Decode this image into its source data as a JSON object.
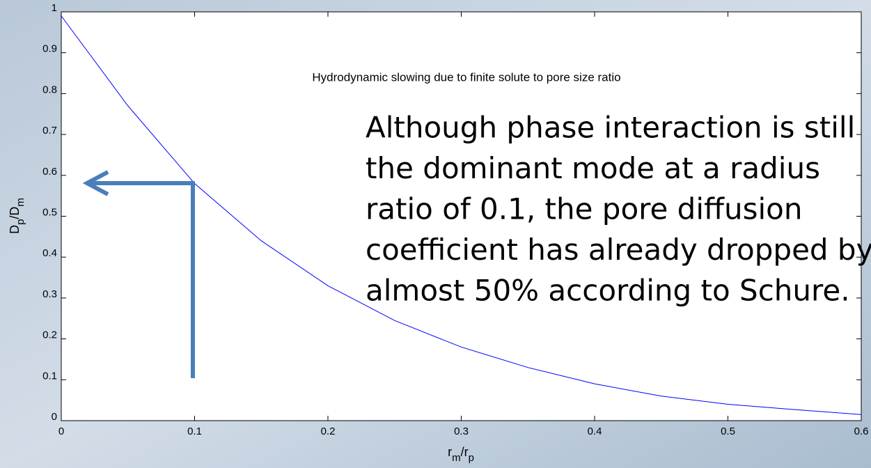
{
  "chart_data": {
    "type": "line",
    "title": "Hydrodynamic slowing due to finite solute to pore size ratio",
    "xlabel": [
      "r",
      "m",
      "/r",
      "p"
    ],
    "ylabel": [
      "D",
      "p",
      "/D",
      "m"
    ],
    "x": [
      0,
      0.05,
      0.1,
      0.15,
      0.2,
      0.25,
      0.3,
      0.35,
      0.4,
      0.45,
      0.5,
      0.55,
      0.6
    ],
    "series": [
      {
        "name": "Dp/Dm",
        "color": "#0000ff",
        "values": [
          0.99,
          0.77,
          0.58,
          0.44,
          0.33,
          0.245,
          0.18,
          0.13,
          0.09,
          0.06,
          0.04,
          0.027,
          0.015
        ]
      }
    ],
    "xlim": [
      0,
      0.6
    ],
    "ylim": [
      0,
      1
    ],
    "xticks": [
      0,
      0.1,
      0.2,
      0.3,
      0.4,
      0.5,
      0.6
    ],
    "yticks": [
      0,
      0.1,
      0.2,
      0.3,
      0.4,
      0.5,
      0.6,
      0.7,
      0.8,
      0.9,
      1
    ],
    "annotation": [
      "Although phase interaction is still",
      "the  dominant mode at a radius",
      "ratio of 0.1, the pore diffusion",
      "coefficient has already dropped by",
      "almost 50% according to Schure."
    ]
  }
}
